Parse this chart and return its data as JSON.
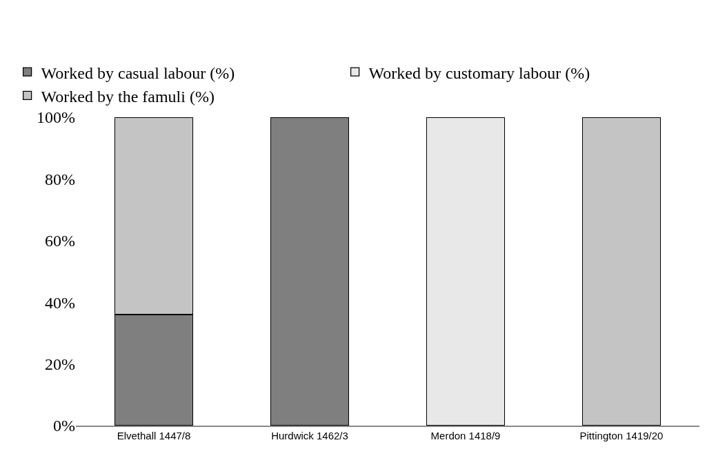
{
  "chart_data": {
    "type": "bar",
    "stacked": true,
    "categories": [
      "Elvethall 1447/8",
      "Hurdwick 1462/3",
      "Merdon 1418/9",
      "Pittington 1419/20"
    ],
    "series": [
      {
        "name": "Worked by casual labour (%)",
        "color": "#7f7f7f",
        "values": [
          36,
          100,
          0,
          0
        ]
      },
      {
        "name": "Worked by customary labour (%)",
        "color": "#e8e8e8",
        "values": [
          0,
          0,
          100,
          0
        ]
      },
      {
        "name": "Worked by the famuli (%)",
        "color": "#c4c4c4",
        "values": [
          64,
          0,
          0,
          100
        ]
      }
    ],
    "ylim": [
      0,
      100
    ],
    "yticks": [
      {
        "value": 0,
        "label": "0%"
      },
      {
        "value": 20,
        "label": "20%"
      },
      {
        "value": 40,
        "label": "40%"
      },
      {
        "value": 60,
        "label": "60%"
      },
      {
        "value": 80,
        "label": "80%"
      },
      {
        "value": 100,
        "label": "100%"
      }
    ],
    "legend": "top left"
  }
}
